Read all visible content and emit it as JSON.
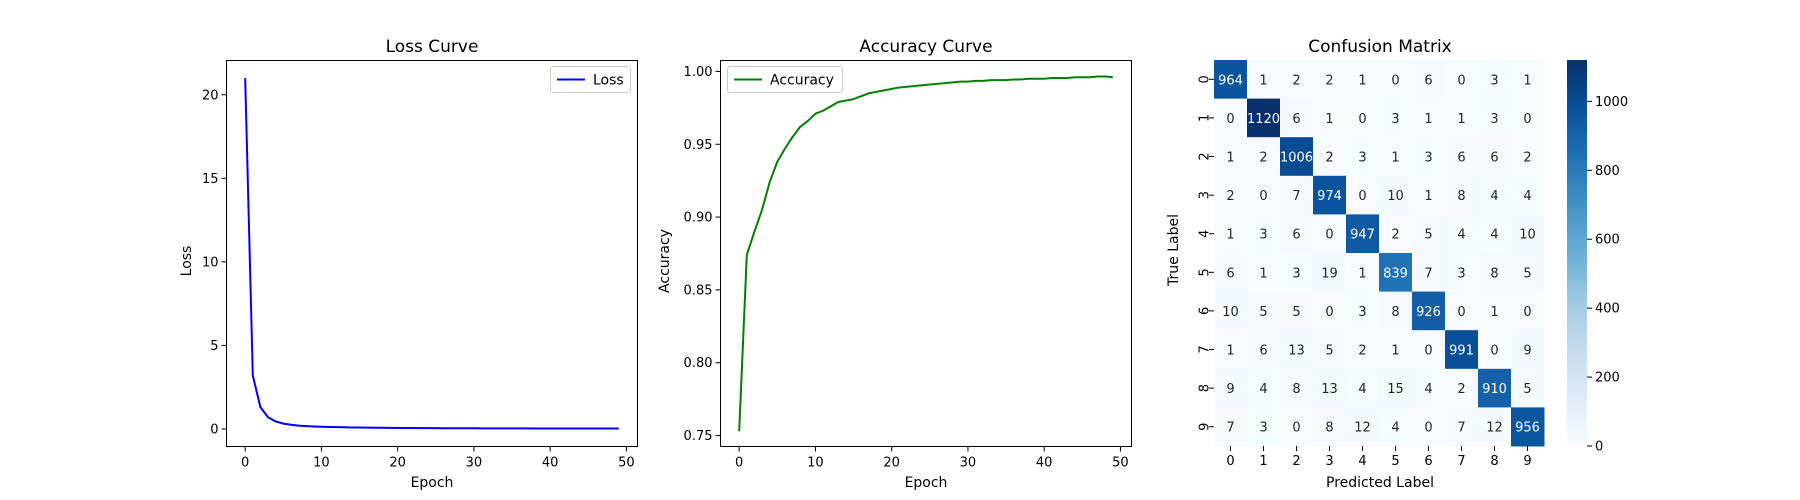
{
  "chart_data": [
    {
      "type": "line",
      "title": "Loss Curve",
      "xlabel": "Epoch",
      "ylabel": "Loss",
      "xlim": [
        -2.45,
        51.45
      ],
      "ylim": [
        -1.05,
        22.05
      ],
      "xticks": [
        0,
        10,
        20,
        30,
        40,
        50
      ],
      "yticks": [
        0,
        5,
        10,
        15,
        20
      ],
      "legend_position": "upper-right",
      "grid": false,
      "series": [
        {
          "name": "Loss",
          "color": "#0000ff",
          "x": [
            0,
            1,
            2,
            3,
            4,
            5,
            6,
            7,
            8,
            9,
            10,
            11,
            12,
            13,
            14,
            15,
            16,
            17,
            18,
            19,
            20,
            21,
            22,
            23,
            24,
            25,
            26,
            27,
            28,
            29,
            30,
            31,
            32,
            33,
            34,
            35,
            36,
            37,
            38,
            39,
            40,
            41,
            42,
            43,
            44,
            45,
            46,
            47,
            48,
            49
          ],
          "values": [
            21.0,
            3.2,
            1.3,
            0.7,
            0.45,
            0.32,
            0.25,
            0.2,
            0.17,
            0.15,
            0.13,
            0.12,
            0.11,
            0.1,
            0.09,
            0.085,
            0.08,
            0.075,
            0.07,
            0.065,
            0.06,
            0.058,
            0.055,
            0.052,
            0.05,
            0.048,
            0.046,
            0.044,
            0.042,
            0.04,
            0.039,
            0.038,
            0.037,
            0.036,
            0.035,
            0.034,
            0.033,
            0.032,
            0.031,
            0.03,
            0.03,
            0.029,
            0.028,
            0.028,
            0.027,
            0.026,
            0.026,
            0.025,
            0.025,
            0.024
          ]
        }
      ]
    },
    {
      "type": "line",
      "title": "Accuracy Curve",
      "xlabel": "Epoch",
      "ylabel": "Accuracy",
      "xlim": [
        -2.45,
        51.45
      ],
      "ylim": [
        0.7425,
        1.0075
      ],
      "xticks": [
        0,
        10,
        20,
        30,
        40,
        50
      ],
      "yticks": [
        0.75,
        0.8,
        0.85,
        0.9,
        0.95,
        1.0
      ],
      "ytick_labels": [
        "0.75",
        "0.80",
        "0.85",
        "0.90",
        "0.95",
        "1.00"
      ],
      "legend_position": "upper-left",
      "grid": false,
      "series": [
        {
          "name": "Accuracy",
          "color": "#008000",
          "x": [
            0,
            1,
            2,
            3,
            4,
            5,
            6,
            7,
            8,
            9,
            10,
            11,
            12,
            13,
            14,
            15,
            16,
            17,
            18,
            19,
            20,
            21,
            22,
            23,
            24,
            25,
            26,
            27,
            28,
            29,
            30,
            31,
            32,
            33,
            34,
            35,
            36,
            37,
            38,
            39,
            40,
            41,
            42,
            43,
            44,
            45,
            46,
            47,
            48,
            49
          ],
          "values": [
            0.753,
            0.874,
            0.89,
            0.905,
            0.924,
            0.938,
            0.947,
            0.955,
            0.962,
            0.966,
            0.971,
            0.973,
            0.976,
            0.979,
            0.98,
            0.981,
            0.983,
            0.985,
            0.986,
            0.987,
            0.988,
            0.989,
            0.9895,
            0.99,
            0.9905,
            0.991,
            0.9915,
            0.992,
            0.9925,
            0.993,
            0.993,
            0.9935,
            0.9935,
            0.994,
            0.994,
            0.994,
            0.9945,
            0.9945,
            0.995,
            0.995,
            0.995,
            0.9955,
            0.9955,
            0.9955,
            0.996,
            0.996,
            0.996,
            0.9965,
            0.9965,
            0.996
          ]
        }
      ]
    },
    {
      "type": "heatmap",
      "title": "Confusion Matrix",
      "xlabel": "Predicted Label",
      "ylabel": "True Label",
      "x_categories": [
        "0",
        "1",
        "2",
        "3",
        "4",
        "5",
        "6",
        "7",
        "8",
        "9"
      ],
      "y_categories": [
        "0",
        "1",
        "2",
        "3",
        "4",
        "5",
        "6",
        "7",
        "8",
        "9"
      ],
      "colormap": "Blues",
      "colorbar_range": [
        0,
        1120
      ],
      "colorbar_ticks": [
        0,
        200,
        400,
        600,
        800,
        1000
      ],
      "matrix": [
        [
          964,
          1,
          2,
          2,
          1,
          0,
          6,
          0,
          3,
          1
        ],
        [
          0,
          1120,
          6,
          1,
          0,
          3,
          1,
          1,
          3,
          0
        ],
        [
          1,
          2,
          1006,
          2,
          3,
          1,
          3,
          6,
          6,
          2
        ],
        [
          2,
          0,
          7,
          974,
          0,
          10,
          1,
          8,
          4,
          4
        ],
        [
          1,
          3,
          6,
          0,
          947,
          2,
          5,
          4,
          4,
          10
        ],
        [
          6,
          1,
          3,
          19,
          1,
          839,
          7,
          3,
          8,
          5
        ],
        [
          10,
          5,
          5,
          0,
          3,
          8,
          926,
          0,
          1,
          0
        ],
        [
          1,
          6,
          13,
          5,
          2,
          1,
          0,
          991,
          0,
          9
        ],
        [
          9,
          4,
          8,
          13,
          4,
          15,
          4,
          2,
          910,
          5
        ],
        [
          7,
          3,
          0,
          8,
          12,
          4,
          0,
          7,
          12,
          956
        ]
      ]
    }
  ]
}
